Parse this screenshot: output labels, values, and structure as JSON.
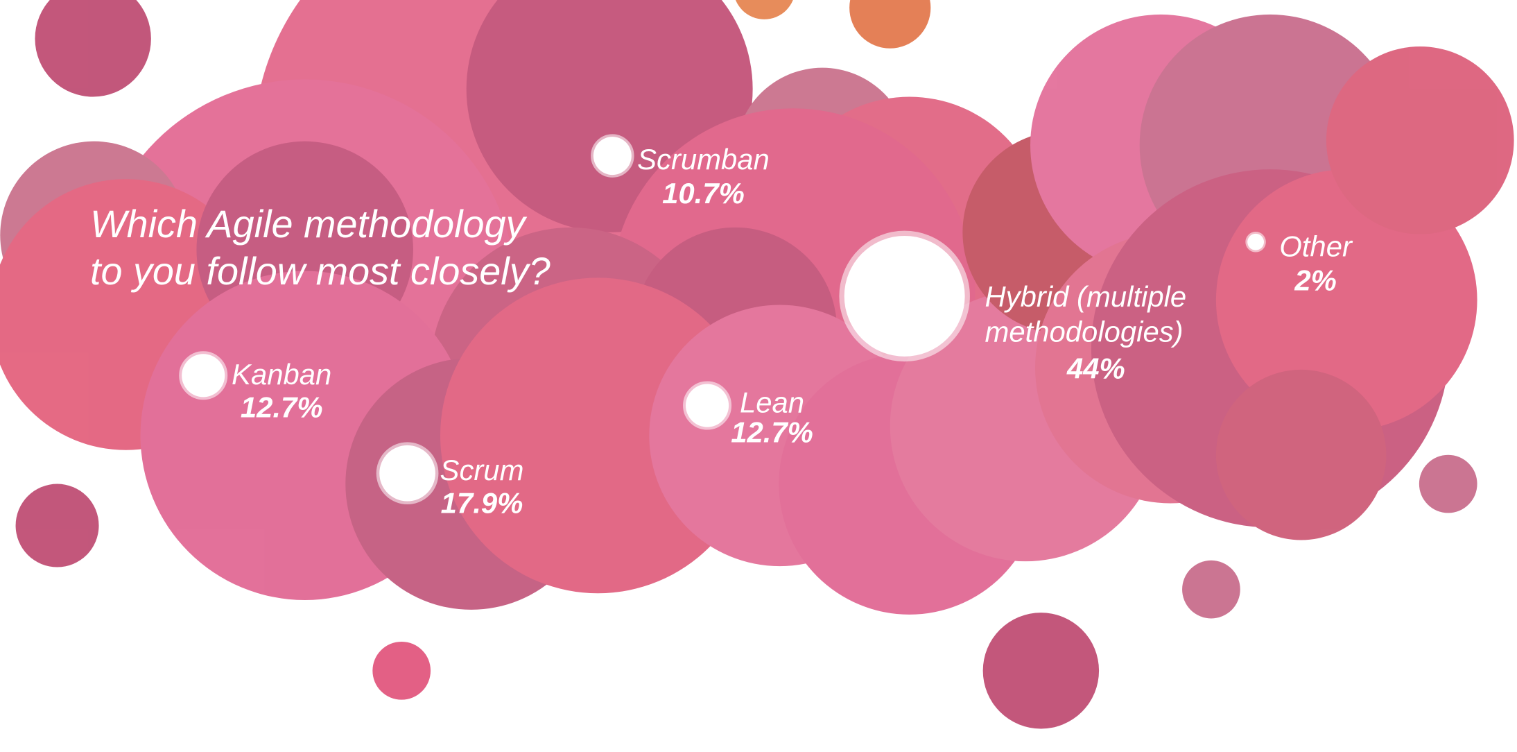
{
  "chart_data": {
    "type": "bubble",
    "title": [
      "Which Agile methodology",
      "to you follow most closely?"
    ],
    "categories": [
      "Scrumban",
      "Kanban",
      "Scrum",
      "Lean",
      "Hybrid (multiple methodologies)",
      "Other"
    ],
    "values": [
      10.7,
      12.7,
      17.9,
      12.7,
      44,
      2
    ],
    "value_labels": [
      "10.7%",
      "12.7%",
      "17.9%",
      "12.7%",
      "44%",
      "2%"
    ],
    "color": "#ffffff"
  }
}
